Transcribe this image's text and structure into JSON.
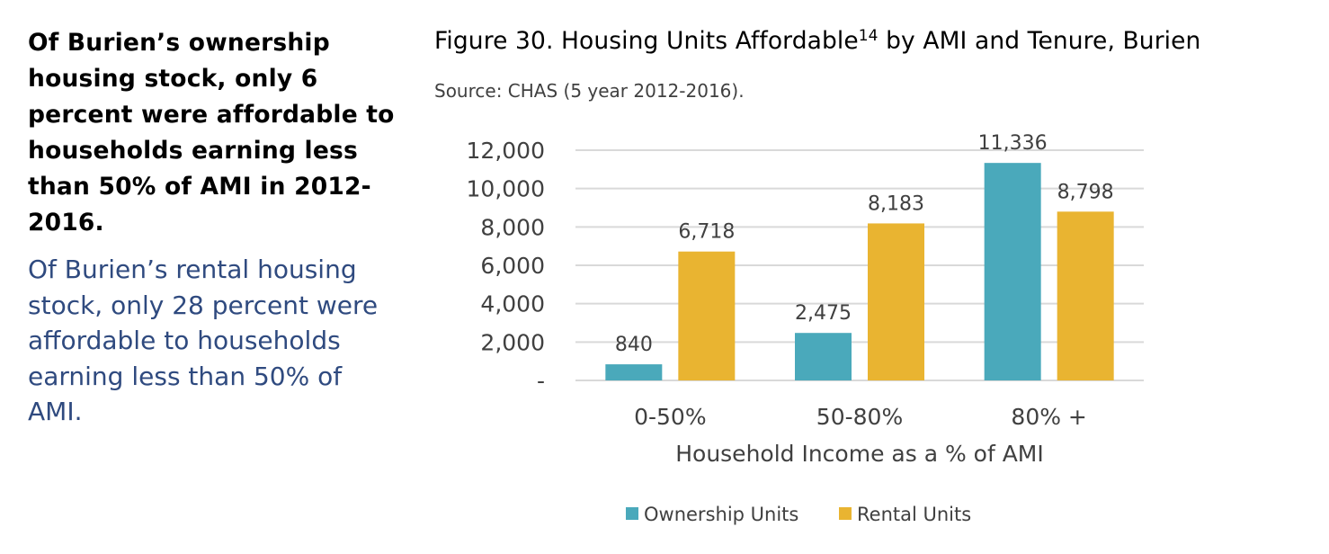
{
  "callout": {
    "bold_lines": [
      "Of Burien’s ownership",
      "housing stock, only 6",
      "percent were affordable to",
      "households earning less",
      "than 50% of AMI in 2012-",
      "2016."
    ],
    "blue_lines": [
      "Of Burien’s rental housing",
      "stock, only 28 percent were",
      "affordable to households",
      "earning less than 50% of",
      "AMI."
    ]
  },
  "figure": {
    "title_main": "Figure 30. Housing Units Affordable",
    "title_sup": "14",
    "title_rest": " by AMI and Tenure, Burien",
    "source": "Source: CHAS (5 year 2012-2016)."
  },
  "chart_data": {
    "type": "bar",
    "title": "Figure 30. Housing Units Affordable14 by AMI and Tenure, Burien",
    "xlabel": "Household Income as a % of AMI",
    "ylabel": "",
    "categories": [
      "0-50%",
      "50-80%",
      "80% +"
    ],
    "series": [
      {
        "name": "Ownership Units",
        "color": "#4aa9bb",
        "values": [
          840,
          2475,
          11336
        ],
        "labels": [
          "840",
          "2,475",
          "11,336"
        ]
      },
      {
        "name": "Rental Units",
        "color": "#e9b431",
        "values": [
          6718,
          8183,
          8798
        ],
        "labels": [
          "6,718",
          "8,183",
          "8,798"
        ]
      }
    ],
    "ylim": [
      0,
      12000
    ],
    "yticks": [
      0,
      2000,
      4000,
      6000,
      8000,
      10000,
      12000
    ],
    "ytick_labels": [
      "-",
      "2,000",
      "4,000",
      "6,000",
      "8,000",
      "10,000",
      "12,000"
    ],
    "grid": true,
    "legend_position": "bottom-center",
    "colors": {
      "gridline": "#d9d9d9",
      "axis_text": "#404040"
    }
  }
}
